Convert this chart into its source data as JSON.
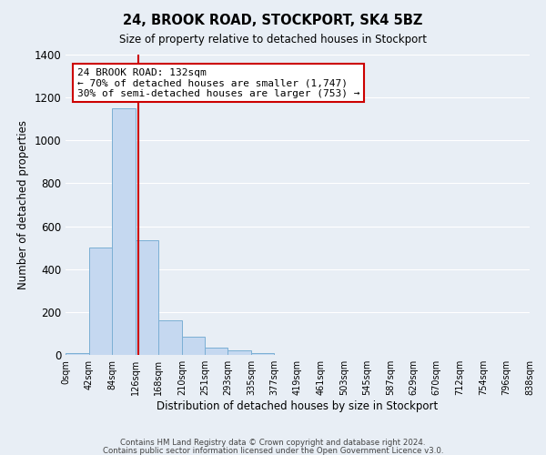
{
  "title": "24, BROOK ROAD, STOCKPORT, SK4 5BZ",
  "subtitle": "Size of property relative to detached houses in Stockport",
  "xlabel": "Distribution of detached houses by size in Stockport",
  "ylabel": "Number of detached properties",
  "bar_edges": [
    0,
    42,
    84,
    126,
    168,
    210,
    251,
    293,
    335,
    377,
    419,
    461,
    503,
    545,
    587,
    629,
    670,
    712,
    754,
    796,
    838
  ],
  "bar_heights": [
    10,
    500,
    1150,
    535,
    160,
    85,
    35,
    22,
    10,
    0,
    0,
    0,
    0,
    0,
    0,
    0,
    0,
    0,
    0,
    0
  ],
  "tick_labels": [
    "0sqm",
    "42sqm",
    "84sqm",
    "126sqm",
    "168sqm",
    "210sqm",
    "251sqm",
    "293sqm",
    "335sqm",
    "377sqm",
    "419sqm",
    "461sqm",
    "503sqm",
    "545sqm",
    "587sqm",
    "629sqm",
    "670sqm",
    "712sqm",
    "754sqm",
    "796sqm",
    "838sqm"
  ],
  "bar_color": "#c5d8f0",
  "bar_edge_color": "#7bafd4",
  "vline_x": 132,
  "vline_color": "#cc0000",
  "ylim": [
    0,
    1400
  ],
  "yticks": [
    0,
    200,
    400,
    600,
    800,
    1000,
    1200,
    1400
  ],
  "annotation_title": "24 BROOK ROAD: 132sqm",
  "annotation_line1": "← 70% of detached houses are smaller (1,747)",
  "annotation_line2": "30% of semi-detached houses are larger (753) →",
  "annotation_box_color": "#ffffff",
  "annotation_box_edge": "#cc0000",
  "background_color": "#e8eef5",
  "grid_color": "#ffffff",
  "footer1": "Contains HM Land Registry data © Crown copyright and database right 2024.",
  "footer2": "Contains public sector information licensed under the Open Government Licence v3.0."
}
